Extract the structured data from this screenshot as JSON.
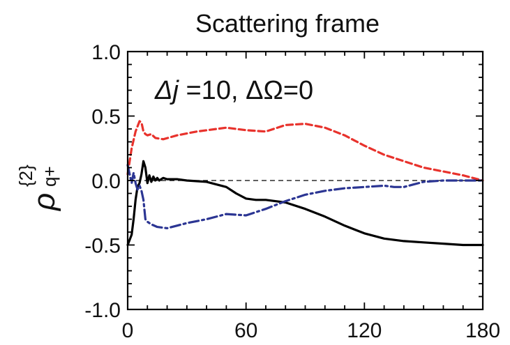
{
  "chart_data": {
    "type": "line",
    "title": "Scattering frame",
    "annotation": {
      "delta_j": "Δj",
      "j_rest": " =10, ΔΩ=0"
    },
    "ylabel": {
      "symbol": "ρ",
      "superscript": "{2}",
      "subscript": "q+"
    },
    "xlabel": "",
    "xlim": [
      0,
      180
    ],
    "ylim": [
      -1.0,
      1.0
    ],
    "x_ticks": [
      "0",
      "60",
      "120",
      "180"
    ],
    "y_ticks": [
      "1.0",
      "0.5",
      "0.0",
      "-0.5",
      "-1.0"
    ],
    "zero_line": true,
    "grid": false,
    "series": [
      {
        "color": "#000000",
        "style": "solid",
        "points": [
          [
            0,
            -0.5
          ],
          [
            2,
            -0.42
          ],
          [
            3,
            -0.3
          ],
          [
            4,
            -0.15
          ],
          [
            5,
            -0.05
          ],
          [
            6,
            -0.02
          ],
          [
            7,
            0.05
          ],
          [
            8,
            0.15
          ],
          [
            9,
            0.1
          ],
          [
            10,
            -0.02
          ],
          [
            11,
            0.04
          ],
          [
            12,
            -0.01
          ],
          [
            13,
            0.03
          ],
          [
            14,
            0.0
          ],
          [
            15,
            0.02
          ],
          [
            16,
            0.0
          ],
          [
            18,
            0.02
          ],
          [
            20,
            0.01
          ],
          [
            25,
            0.01
          ],
          [
            30,
            0.0
          ],
          [
            40,
            -0.01
          ],
          [
            50,
            -0.05
          ],
          [
            55,
            -0.1
          ],
          [
            60,
            -0.14
          ],
          [
            65,
            -0.15
          ],
          [
            70,
            -0.15
          ],
          [
            80,
            -0.17
          ],
          [
            90,
            -0.22
          ],
          [
            100,
            -0.28
          ],
          [
            110,
            -0.35
          ],
          [
            120,
            -0.41
          ],
          [
            130,
            -0.45
          ],
          [
            140,
            -0.47
          ],
          [
            150,
            -0.48
          ],
          [
            160,
            -0.49
          ],
          [
            170,
            -0.5
          ],
          [
            180,
            -0.5
          ]
        ]
      },
      {
        "color": "#e8322c",
        "style": "dashed",
        "points": [
          [
            0,
            0.05
          ],
          [
            2,
            0.25
          ],
          [
            4,
            0.38
          ],
          [
            6,
            0.46
          ],
          [
            7,
            0.45
          ],
          [
            8,
            0.38
          ],
          [
            9,
            0.36
          ],
          [
            10,
            0.35
          ],
          [
            12,
            0.36
          ],
          [
            14,
            0.33
          ],
          [
            18,
            0.32
          ],
          [
            25,
            0.35
          ],
          [
            35,
            0.38
          ],
          [
            50,
            0.41
          ],
          [
            60,
            0.39
          ],
          [
            70,
            0.38
          ],
          [
            80,
            0.43
          ],
          [
            90,
            0.44
          ],
          [
            100,
            0.41
          ],
          [
            110,
            0.35
          ],
          [
            120,
            0.27
          ],
          [
            130,
            0.2
          ],
          [
            140,
            0.15
          ],
          [
            150,
            0.1
          ],
          [
            160,
            0.07
          ],
          [
            170,
            0.04
          ],
          [
            180,
            0.0
          ]
        ]
      },
      {
        "color": "#2b3593",
        "style": "dashdot",
        "points": [
          [
            0,
            0.12
          ],
          [
            1,
            0.05
          ],
          [
            2,
            -0.02
          ],
          [
            3,
            0.06
          ],
          [
            4,
            -0.02
          ],
          [
            5,
            -0.07
          ],
          [
            6,
            -0.04
          ],
          [
            7,
            -0.08
          ],
          [
            8,
            -0.15
          ],
          [
            9,
            -0.3
          ],
          [
            10,
            -0.32
          ],
          [
            12,
            -0.34
          ],
          [
            15,
            -0.36
          ],
          [
            20,
            -0.37
          ],
          [
            30,
            -0.33
          ],
          [
            40,
            -0.3
          ],
          [
            50,
            -0.26
          ],
          [
            60,
            -0.27
          ],
          [
            70,
            -0.22
          ],
          [
            80,
            -0.16
          ],
          [
            90,
            -0.11
          ],
          [
            100,
            -0.08
          ],
          [
            110,
            -0.06
          ],
          [
            120,
            -0.05
          ],
          [
            130,
            -0.04
          ],
          [
            135,
            -0.05
          ],
          [
            140,
            -0.05
          ],
          [
            145,
            -0.03
          ],
          [
            150,
            -0.01
          ],
          [
            160,
            0.0
          ],
          [
            170,
            0.0
          ],
          [
            180,
            0.0
          ]
        ]
      }
    ]
  }
}
